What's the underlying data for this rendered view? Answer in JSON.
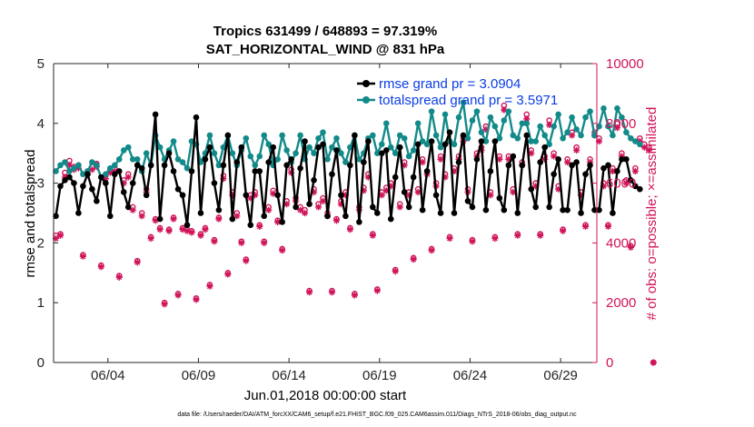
{
  "chart_data": {
    "type": "line",
    "title": "Tropics 631499 / 648893 = 97.319%",
    "subtitle": "SAT_HORIZONTAL_WIND @ 831 hPa",
    "xlabel": "Jun.01,2018 00:00:00 start",
    "ylabel": "rmse and totalspread",
    "y2label": "# of obs: o=possible; ×=assimilated",
    "footnote": "data file: /Users/raeder/DAI/ATM_forcXX/CAM6_setup/f.e21.FHIST_BGC.f09_025.CAM6assim.011/Diags_NTrS_2018-06/obs_diag_output.nc",
    "xlim": [
      1.0,
      31.0
    ],
    "ylim": [
      0,
      5
    ],
    "y2lim": [
      0,
      10000
    ],
    "xticks": [
      {
        "pos": 4,
        "label": "06/04"
      },
      {
        "pos": 9,
        "label": "06/09"
      },
      {
        "pos": 14,
        "label": "06/14"
      },
      {
        "pos": 19,
        "label": "06/19"
      },
      {
        "pos": 24,
        "label": "06/24"
      },
      {
        "pos": 29,
        "label": "06/29"
      }
    ],
    "yticks": [
      "0",
      "1",
      "2",
      "3",
      "4",
      "5"
    ],
    "y2ticks": [
      "0",
      "2000",
      "4000",
      "6000",
      "8000",
      "10000"
    ],
    "colors": {
      "rmse": "#000000",
      "spread": "#138a8a",
      "obs": "#d0145a",
      "legend_text": "#0a3ee6"
    },
    "series": [
      {
        "name": "rmse grand pr = 3.0904",
        "legend": "rmse grand pr = 3.0904",
        "start": 1.125,
        "step": 0.25,
        "values": [
          2.45,
          2.95,
          3.05,
          3.1,
          3.0,
          2.5,
          2.95,
          3.15,
          2.9,
          2.7,
          3.1,
          3.0,
          2.45,
          3.15,
          3.2,
          2.85,
          2.6,
          3.0,
          3.3,
          3.25,
          2.8,
          3.3,
          4.15,
          2.4,
          3.3,
          3.5,
          3.2,
          2.9,
          2.8,
          2.3,
          3.2,
          4.1,
          2.5,
          3.4,
          3.6,
          3.0,
          2.55,
          3.3,
          3.8,
          2.4,
          3.35,
          3.6,
          2.8,
          2.3,
          3.2,
          3.2,
          2.45,
          3.35,
          3.6,
          2.8,
          2.35,
          3.3,
          3.4,
          2.6,
          3.25,
          3.7,
          2.65,
          3.05,
          3.6,
          3.65,
          2.45,
          3.15,
          3.55,
          2.8,
          2.45,
          3.3,
          3.8,
          2.35,
          3.35,
          3.7,
          2.6,
          2.5,
          3.5,
          3.55,
          2.4,
          3.1,
          3.6,
          2.85,
          2.6,
          3.1,
          3.65,
          2.55,
          3.2,
          3.7,
          2.8,
          2.5,
          3.65,
          3.85,
          2.5,
          3.35,
          3.8,
          2.7,
          2.6,
          3.4,
          3.7,
          2.55,
          3.2,
          3.7,
          2.75,
          2.55,
          3.3,
          3.45,
          2.5,
          3.3,
          3.8,
          2.9,
          2.6,
          3.35,
          3.6,
          2.6,
          3.15,
          3.4,
          2.55,
          2.55,
          3.3,
          3.35,
          2.5,
          3.15,
          3.3,
          2.55,
          2.55,
          3.25,
          3.3,
          2.5,
          3.2,
          3.4
        ],
        "tail": [
          3.4,
          3.05,
          2.95,
          2.9
        ]
      },
      {
        "name": "totalspread grand pr = 3.5971",
        "legend": "totalspread grand pr = 3.5971",
        "start": 1.125,
        "step": 0.25,
        "values": [
          3.2,
          3.3,
          3.35,
          3.2,
          3.25,
          3.3,
          3.15,
          3.2,
          3.35,
          3.3,
          3.1,
          3.15,
          3.25,
          3.3,
          3.4,
          3.55,
          3.6,
          3.4,
          3.4,
          3.2,
          3.5,
          3.3,
          3.8,
          3.6,
          3.4,
          3.55,
          3.7,
          3.4,
          3.35,
          3.25,
          3.7,
          3.65,
          3.35,
          3.5,
          3.8,
          3.5,
          3.3,
          3.6,
          3.8,
          3.5,
          3.3,
          3.55,
          3.75,
          3.45,
          3.3,
          3.45,
          3.8,
          3.65,
          3.3,
          3.4,
          3.8,
          3.55,
          3.35,
          3.5,
          3.8,
          3.4,
          3.6,
          3.5,
          3.75,
          3.85,
          3.4,
          3.6,
          3.75,
          3.5,
          3.35,
          3.6,
          3.8,
          3.4,
          3.5,
          3.75,
          3.8,
          3.5,
          3.65,
          4.0,
          3.6,
          3.5,
          3.8,
          3.75,
          3.45,
          3.55,
          4.0,
          3.7,
          3.65,
          4.2,
          3.8,
          3.6,
          4.15,
          3.7,
          3.65,
          4.1,
          4.35,
          3.75,
          4.05,
          4.2,
          3.85,
          3.7,
          4.1,
          3.95,
          3.75,
          4.05,
          4.2,
          3.8,
          3.75,
          4.0,
          4.0,
          3.7,
          3.7,
          3.95,
          3.8,
          3.65,
          3.95,
          4.15,
          3.75,
          3.85,
          4.1,
          3.9,
          3.8,
          4.1,
          4.2,
          3.8,
          3.95,
          4.25,
          3.95,
          3.8,
          4.25,
          4.1
        ],
        "tail": [
          3.85,
          3.75,
          3.7,
          3.65
        ]
      },
      {
        "name": "# of obs possible",
        "axis": "right",
        "start": 1.125,
        "step": 0.25,
        "values": [
          4250,
          4300,
          6350,
          6750,
          6550,
          6600,
          3600,
          6400,
          6550,
          6650,
          3250,
          6250,
          6450,
          6500,
          2900,
          6100,
          6300,
          5200,
          3400,
          5000,
          5800,
          4200,
          4800,
          4500,
          2000,
          4450,
          4850,
          2300,
          4500,
          4450,
          4400,
          2150,
          4300,
          4500,
          2600,
          4100,
          4850,
          6250,
          3000,
          5700,
          5000,
          4050,
          3450,
          5600,
          5700,
          4600,
          4050,
          5200,
          5750,
          4750,
          3800,
          5400,
          6450,
          5500,
          5200,
          5100,
          2400,
          5800,
          5300,
          5500,
          5000,
          2400,
          4800,
          5400,
          5700,
          4500,
          2300,
          5200,
          5850,
          6300,
          4300,
          2450,
          5700,
          5850,
          6000,
          3100,
          5300,
          6700,
          5700,
          3500,
          5800,
          6800,
          6400,
          3800,
          6000,
          6900,
          6300,
          4200,
          6500,
          6900,
          7500,
          5800,
          4100,
          7000,
          7200,
          7900,
          5700,
          4200,
          6900,
          8600,
          6900,
          5800,
          4300,
          6700,
          8300,
          7100,
          6000,
          4300,
          6900,
          8100,
          7000,
          5900,
          4450,
          6800,
          7700,
          7200,
          5700,
          4600,
          6800,
          7700,
          7500,
          6000,
          4600,
          6500,
          8000,
          7000,
          6100,
          3900,
          6500
        ],
        "tail": [
          7500,
          7300,
          7200,
          0
        ]
      },
      {
        "name": "# of obs assimilated",
        "axis": "right",
        "start": 1.125,
        "step": 0.25,
        "values": [
          4150,
          4250,
          6200,
          6600,
          6450,
          6500,
          3550,
          6300,
          6450,
          6550,
          3200,
          6150,
          6350,
          6400,
          2850,
          6000,
          6200,
          5100,
          3350,
          4900,
          5700,
          4150,
          4750,
          4450,
          1950,
          4400,
          4800,
          2250,
          4450,
          4400,
          4350,
          2100,
          4250,
          4450,
          2550,
          4050,
          4800,
          6150,
          2950,
          5600,
          4900,
          4000,
          3400,
          5500,
          5600,
          4550,
          4000,
          5100,
          5650,
          4700,
          3750,
          5300,
          6350,
          5400,
          5100,
          5000,
          2350,
          5700,
          5200,
          5400,
          4900,
          2350,
          4750,
          5300,
          5600,
          4450,
          2250,
          5100,
          5750,
          6200,
          4250,
          2400,
          5600,
          5750,
          5900,
          3050,
          5200,
          6600,
          5600,
          3450,
          5700,
          6700,
          6300,
          3750,
          5900,
          6800,
          6200,
          4150,
          6400,
          6800,
          7400,
          5700,
          4050,
          6900,
          7100,
          7800,
          5600,
          4150,
          6800,
          8450,
          6800,
          5700,
          4250,
          6600,
          8150,
          7000,
          5900,
          4250,
          6800,
          7950,
          6900,
          5800,
          4400,
          6700,
          7600,
          7100,
          5600,
          4550,
          6700,
          7600,
          7400,
          5900,
          4550,
          6400,
          7850,
          6900,
          6000,
          3850,
          6400
        ],
        "tail": [
          7400,
          7200,
          7100,
          0
        ]
      }
    ]
  }
}
